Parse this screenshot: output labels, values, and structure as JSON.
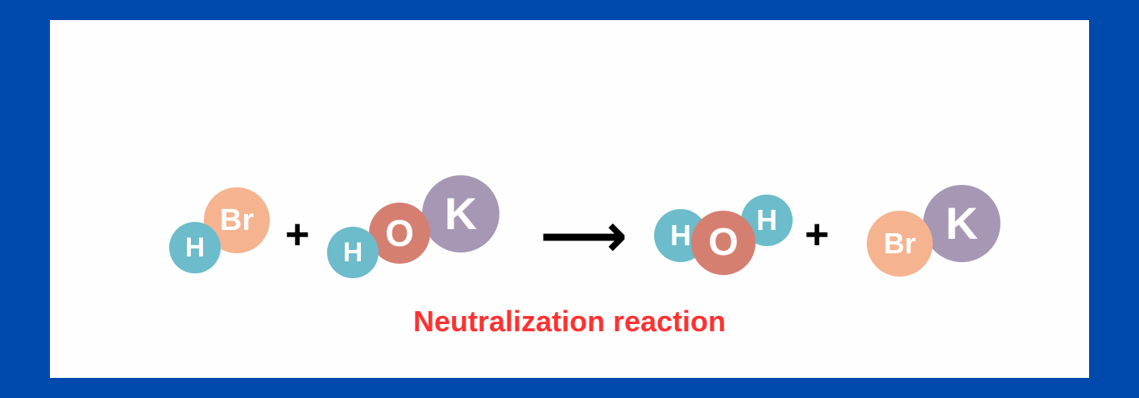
{
  "colors": {
    "frame": "#004aad",
    "background": "#fefefe",
    "hydrogen": "#6cbccb",
    "bromine": "#f5b48f",
    "oxygen": "#d57f71",
    "potassium": "#a697b5",
    "caption": "#ff3131"
  },
  "equation": {
    "reactant_1": {
      "atoms": [
        "H",
        "Br"
      ]
    },
    "plus_1": "+",
    "reactant_2": {
      "atoms": [
        "H",
        "O",
        "K"
      ]
    },
    "arrow": "⟶",
    "product_1": {
      "atoms": [
        "H",
        "O",
        "H"
      ]
    },
    "plus_2": "+",
    "product_2": {
      "atoms": [
        "Br",
        "K"
      ]
    }
  },
  "caption": "Neutralization reaction"
}
